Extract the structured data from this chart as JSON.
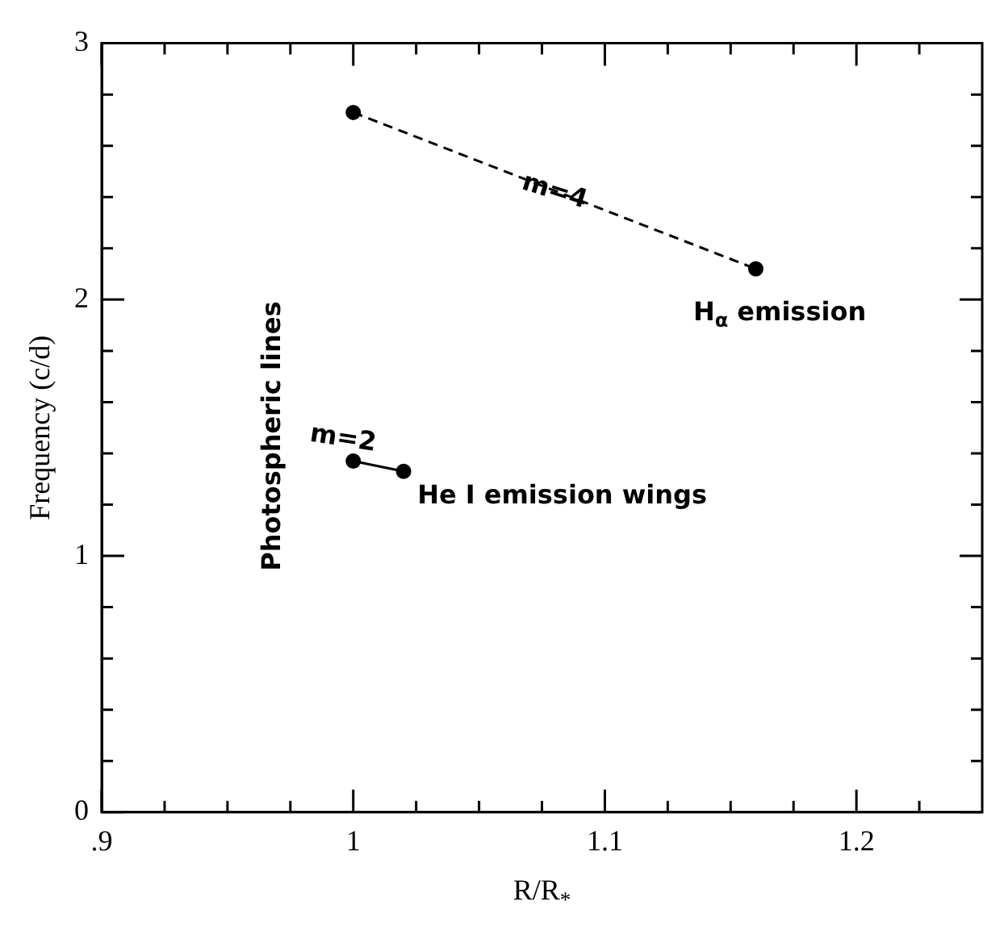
{
  "chart_data": {
    "type": "line",
    "xlabel": "R/R$_{*}$",
    "ylabel": "Frequency (c/d)",
    "xlim": [
      0.9,
      1.25
    ],
    "ylim": [
      0,
      3
    ],
    "xticks": [
      {
        "value": 0.9,
        "label": ".9"
      },
      {
        "value": 0.925,
        "label": null
      },
      {
        "value": 0.95,
        "label": null
      },
      {
        "value": 0.975,
        "label": null
      },
      1,
      {
        "value": 1.025,
        "label": null
      },
      {
        "value": 1.05,
        "label": null
      },
      {
        "value": 1.075,
        "label": null
      },
      1.1,
      {
        "value": 1.125,
        "label": null
      },
      {
        "value": 1.15,
        "label": null
      },
      {
        "value": 1.175,
        "label": null
      },
      1.2,
      {
        "value": 1.225,
        "label": null
      }
    ],
    "yticks": [
      0,
      {
        "value": 0.2,
        "label": null
      },
      {
        "value": 0.4,
        "label": null
      },
      {
        "value": 0.6,
        "label": null
      },
      {
        "value": 0.8,
        "label": null
      },
      1,
      {
        "value": 1.2,
        "label": null
      },
      {
        "value": 1.4,
        "label": null
      },
      {
        "value": 1.6,
        "label": null
      },
      {
        "value": 1.8,
        "label": null
      },
      2,
      {
        "value": 2.2,
        "label": null
      },
      {
        "value": 2.4,
        "label": null
      },
      {
        "value": 2.6,
        "label": null
      },
      {
        "value": 2.8,
        "label": null
      },
      3
    ],
    "series": [
      {
        "x": [
          1.0,
          1.16
        ],
        "values": [
          2.73,
          2.12
        ],
        "color": "#000000",
        "line_style": "dashed"
      },
      {
        "x": [
          1.0,
          1.02
        ],
        "values": [
          1.37,
          1.33
        ],
        "color": "#000000",
        "line_style": "solid"
      }
    ],
    "marker": "circle",
    "grid": false,
    "legend": false,
    "annotations": [
      {
        "text": "m=4",
        "x": 1.08,
        "y": 2.42
      },
      "H$_{α}$ emission",
      "m=2",
      "He I emission wings",
      "Photospheric lines"
    ]
  }
}
